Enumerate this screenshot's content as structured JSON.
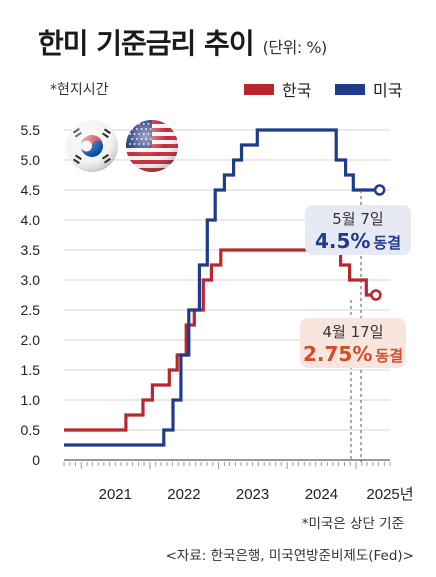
{
  "header": {
    "title": "한미 기준금리 추이",
    "unit": "(단위: %)"
  },
  "note_local_time": "*현지시간",
  "legend": [
    {
      "label": "한국",
      "color": "#b8272e"
    },
    {
      "label": "미국",
      "color": "#1f3c8a"
    }
  ],
  "callouts": {
    "us": {
      "date": "5월 7일",
      "rate": "4.5%",
      "status": "동결"
    },
    "kr": {
      "date": "4월 17일",
      "rate": "2.75%",
      "status": "동결"
    }
  },
  "footnote": "*미국은 상단 기준",
  "source": "<자료: 한국은행, 미국연방준비제도(Fed)>",
  "icons": {
    "kr_flag": "south-korea-flag-icon",
    "us_flag": "usa-flag-icon"
  },
  "chart_data": {
    "type": "line",
    "step": true,
    "title": "한미 기준금리 추이",
    "xlabel": "",
    "ylabel": "",
    "ylim": [
      0,
      5.5
    ],
    "yticks": [
      "0",
      "0.5",
      "1.0",
      "1.5",
      "2.0",
      "2.5",
      "3.0",
      "3.5",
      "4.0",
      "4.5",
      "5.0",
      "5.5"
    ],
    "xticks": [
      "2021",
      "2022",
      "2023",
      "2024",
      "2025년"
    ],
    "xlim": [
      "2020-10-01",
      "2025-07-01"
    ],
    "series": [
      {
        "name": "한국",
        "color": "#b8272e",
        "points": [
          [
            "2020-10-01",
            0.5
          ],
          [
            "2021-08-26",
            0.75
          ],
          [
            "2021-11-25",
            1.0
          ],
          [
            "2022-01-14",
            1.25
          ],
          [
            "2022-04-14",
            1.5
          ],
          [
            "2022-05-26",
            1.75
          ],
          [
            "2022-07-13",
            2.25
          ],
          [
            "2022-08-25",
            2.5
          ],
          [
            "2022-10-12",
            3.0
          ],
          [
            "2022-11-24",
            3.25
          ],
          [
            "2023-01-13",
            3.5
          ],
          [
            "2024-10-11",
            3.25
          ],
          [
            "2024-11-28",
            3.0
          ],
          [
            "2025-02-25",
            2.75
          ],
          [
            "2025-04-17",
            2.75
          ]
        ]
      },
      {
        "name": "미국",
        "color": "#1f3c8a",
        "points": [
          [
            "2020-10-01",
            0.25
          ],
          [
            "2022-03-16",
            0.5
          ],
          [
            "2022-05-04",
            1.0
          ],
          [
            "2022-06-15",
            1.75
          ],
          [
            "2022-07-27",
            2.5
          ],
          [
            "2022-09-21",
            3.25
          ],
          [
            "2022-11-02",
            4.0
          ],
          [
            "2022-12-14",
            4.5
          ],
          [
            "2023-02-01",
            4.75
          ],
          [
            "2023-03-22",
            5.0
          ],
          [
            "2023-05-03",
            5.25
          ],
          [
            "2023-07-26",
            5.5
          ],
          [
            "2024-09-18",
            5.0
          ],
          [
            "2024-11-07",
            4.75
          ],
          [
            "2024-12-18",
            4.5
          ],
          [
            "2025-05-07",
            4.5
          ]
        ]
      }
    ]
  }
}
